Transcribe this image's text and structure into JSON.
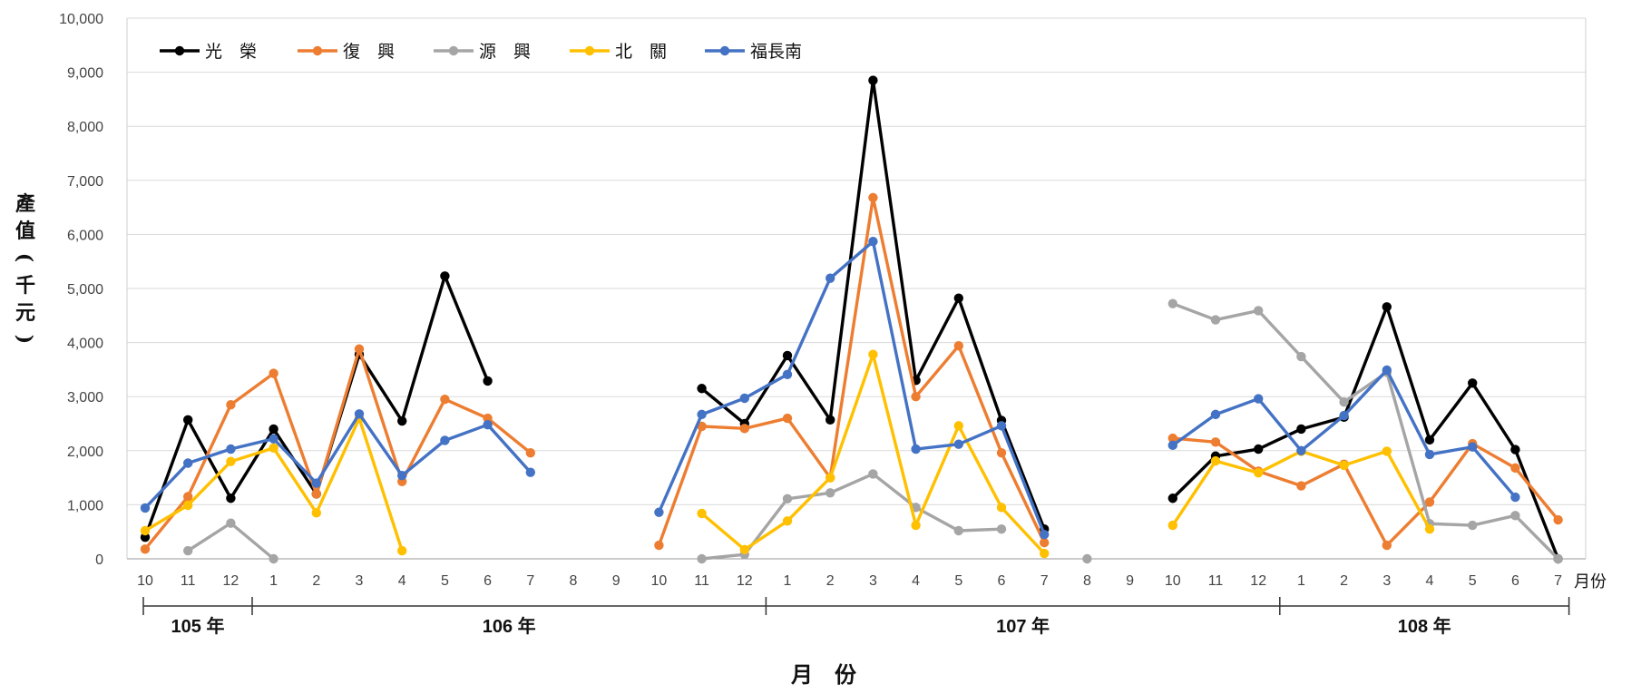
{
  "chart_data": {
    "type": "line",
    "ylabel": "產值(千元)",
    "xlabel": "月　份",
    "x_unit": "月份",
    "ylim": [
      0,
      10000
    ],
    "yticks": [
      "0",
      "1,000",
      "2,000",
      "3,000",
      "4,000",
      "5,000",
      "6,000",
      "7,000",
      "8,000",
      "9,000",
      "10,000"
    ],
    "grid": true,
    "legend_position": "top-left",
    "categories": [
      "10",
      "11",
      "12",
      "1",
      "2",
      "3",
      "4",
      "5",
      "6",
      "7",
      "8",
      "9",
      "10",
      "11",
      "12",
      "1",
      "2",
      "3",
      "4",
      "5",
      "6",
      "7",
      "8",
      "9",
      "10",
      "11",
      "12",
      "1",
      "2",
      "3",
      "4",
      "5",
      "6",
      "7"
    ],
    "year_groups": [
      {
        "label": "105 年",
        "start": 0,
        "end": 2
      },
      {
        "label": "106 年",
        "start": 3,
        "end": 14
      },
      {
        "label": "107 年",
        "start": 15,
        "end": 26
      },
      {
        "label": "108 年",
        "start": 27,
        "end": 33
      }
    ],
    "series": [
      {
        "name": "光　榮",
        "color": "#000000",
        "values": [
          400,
          2570,
          1120,
          2400,
          1200,
          3780,
          2550,
          5230,
          3290,
          null,
          null,
          null,
          null,
          3150,
          2500,
          3760,
          2570,
          8850,
          3300,
          4820,
          2560,
          550,
          null,
          null,
          1120,
          1900,
          2030,
          2400,
          2620,
          4660,
          2200,
          3250,
          2020,
          0
        ]
      },
      {
        "name": "復　興",
        "color": "#ED7D31",
        "values": [
          180,
          1150,
          2850,
          3430,
          1200,
          3880,
          1430,
          2950,
          2600,
          1960,
          null,
          null,
          250,
          2450,
          2410,
          2600,
          1500,
          6680,
          3000,
          3940,
          1960,
          300,
          null,
          null,
          2230,
          2160,
          1620,
          1350,
          1750,
          250,
          1050,
          2130,
          1680,
          720
        ]
      },
      {
        "name": "源　興",
        "color": "#A5A5A5",
        "values": [
          null,
          150,
          660,
          0,
          null,
          null,
          null,
          null,
          null,
          null,
          null,
          null,
          null,
          0,
          80,
          1110,
          1220,
          1570,
          950,
          520,
          550,
          null,
          0,
          null,
          4720,
          4420,
          4590,
          3740,
          2900,
          3450,
          650,
          620,
          800,
          0
        ]
      },
      {
        "name": "北　關",
        "color": "#FFC000",
        "values": [
          520,
          990,
          1800,
          2050,
          850,
          2600,
          150,
          null,
          null,
          null,
          null,
          null,
          null,
          840,
          170,
          700,
          1500,
          3780,
          620,
          2460,
          950,
          100,
          null,
          null,
          620,
          1810,
          1590,
          1990,
          1730,
          1990,
          550,
          null,
          null,
          null
        ]
      },
      {
        "name": "福長南",
        "color": "#4472C4",
        "values": [
          940,
          1770,
          2030,
          2220,
          1400,
          2680,
          1540,
          2190,
          2480,
          1600,
          null,
          null,
          860,
          2670,
          2970,
          3410,
          5190,
          5870,
          2030,
          2120,
          2460,
          450,
          null,
          null,
          2100,
          2670,
          2960,
          2000,
          2650,
          3490,
          1930,
          2070,
          1140,
          null
        ]
      }
    ]
  }
}
